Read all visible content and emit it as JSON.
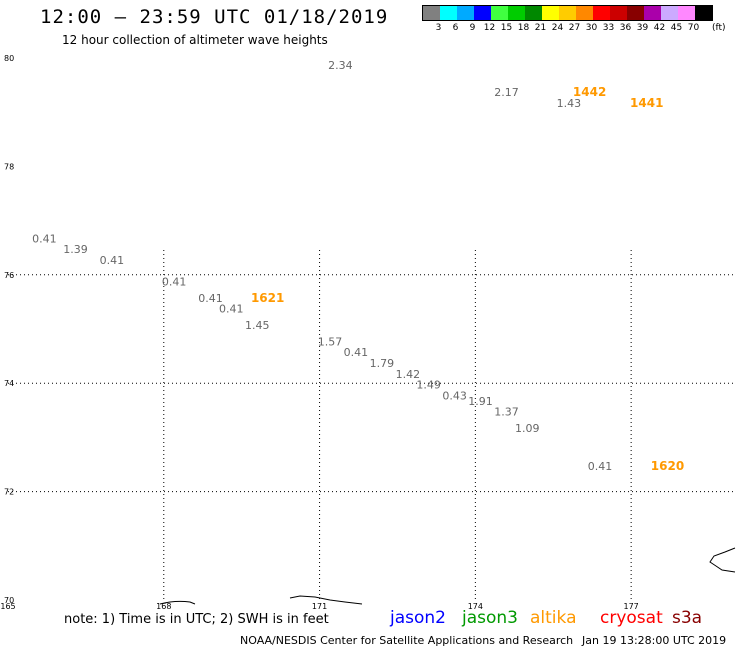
{
  "header": {
    "title": "12:00 — 23:59 UTC 01/18/2019",
    "subtitle": "12 hour collection of altimeter wave heights"
  },
  "legend": {
    "unit_label": "(ft)",
    "bins": [
      {
        "label": "3",
        "color": "#808080"
      },
      {
        "label": "6",
        "color": "#00ffff"
      },
      {
        "label": "9",
        "color": "#00aaff"
      },
      {
        "label": "12",
        "color": "#0000ff"
      },
      {
        "label": "15",
        "color": "#40ff40"
      },
      {
        "label": "18",
        "color": "#00cc00"
      },
      {
        "label": "21",
        "color": "#008800"
      },
      {
        "label": "24",
        "color": "#ffff00"
      },
      {
        "label": "27",
        "color": "#ffcc00"
      },
      {
        "label": "30",
        "color": "#ff8800"
      },
      {
        "label": "33",
        "color": "#ff0000"
      },
      {
        "label": "36",
        "color": "#cc0000"
      },
      {
        "label": "39",
        "color": "#880000"
      },
      {
        "label": "42",
        "color": "#aa00aa"
      },
      {
        "label": "45",
        "color": "#ccaaff"
      },
      {
        "label": "70",
        "color": "#ff88ff"
      },
      {
        "label": "",
        "color": "#000000"
      }
    ]
  },
  "map": {
    "lon_range": [
      165,
      179
    ],
    "lat_range": [
      70,
      80
    ],
    "lon_ticks": [
      "165",
      "168",
      "171",
      "174",
      "177"
    ],
    "lat_ticks": [
      "80",
      "78",
      "76",
      "74",
      "72",
      "70"
    ],
    "tick_values_lon": [
      165,
      168,
      171,
      174,
      177
    ],
    "tick_values_lat": [
      80,
      78,
      76,
      74,
      72,
      70
    ],
    "gridline_lon": [
      168,
      171,
      174,
      177
    ],
    "gridline_lat": [
      76,
      74,
      72
    ],
    "wave_heights": [
      {
        "value": "2.34",
        "lon": 171.4,
        "lat": 79.8
      },
      {
        "value": "2.17",
        "lon": 174.6,
        "lat": 79.3
      },
      {
        "value": "1.43",
        "lon": 175.8,
        "lat": 79.1
      },
      {
        "value": "0.41",
        "lon": 165.7,
        "lat": 76.6
      },
      {
        "value": "1.39",
        "lon": 166.3,
        "lat": 76.4
      },
      {
        "value": "0.41",
        "lon": 167.0,
        "lat": 76.2
      },
      {
        "value": "0.41",
        "lon": 168.2,
        "lat": 75.8
      },
      {
        "value": "0.41",
        "lon": 168.9,
        "lat": 75.5
      },
      {
        "value": "0.41",
        "lon": 169.3,
        "lat": 75.3
      },
      {
        "value": "1.45",
        "lon": 169.8,
        "lat": 75.0
      },
      {
        "value": "1.57",
        "lon": 171.2,
        "lat": 74.7
      },
      {
        "value": "0.41",
        "lon": 171.7,
        "lat": 74.5
      },
      {
        "value": "1.79",
        "lon": 172.2,
        "lat": 74.3
      },
      {
        "value": "1.42",
        "lon": 172.7,
        "lat": 74.1
      },
      {
        "value": "1.49",
        "lon": 173.1,
        "lat": 73.9
      },
      {
        "value": "0.43",
        "lon": 173.6,
        "lat": 73.7
      },
      {
        "value": "1.91",
        "lon": 174.1,
        "lat": 73.6
      },
      {
        "value": "1.37",
        "lon": 174.6,
        "lat": 73.4
      },
      {
        "value": "1.09",
        "lon": 175.0,
        "lat": 73.1
      },
      {
        "value": "0.41",
        "lon": 176.4,
        "lat": 72.4
      }
    ],
    "time_labels": [
      {
        "value": "1442",
        "lon": 176.2,
        "lat": 79.3
      },
      {
        "value": "1441",
        "lon": 177.3,
        "lat": 79.1
      },
      {
        "value": "1621",
        "lon": 170.0,
        "lat": 75.5
      },
      {
        "value": "1620",
        "lon": 177.7,
        "lat": 72.4
      }
    ],
    "time_label_color": "#ff9900",
    "value_color": "#666666"
  },
  "footer": {
    "note": "note: 1) Time is in UTC; 2) SWH is in feet",
    "satellites": [
      {
        "name": "jason2",
        "color": "#0000ff"
      },
      {
        "name": "jason3",
        "color": "#009900"
      },
      {
        "name": "altika",
        "color": "#ff9900"
      },
      {
        "name": "cryosat",
        "color": "#ff0000"
      },
      {
        "name": "s3a",
        "color": "#880000"
      }
    ],
    "credit": "NOAA/NESDIS Center for Satellite Applications and Research",
    "timestamp": "Jan 19 13:28:00 UTC 2019"
  }
}
